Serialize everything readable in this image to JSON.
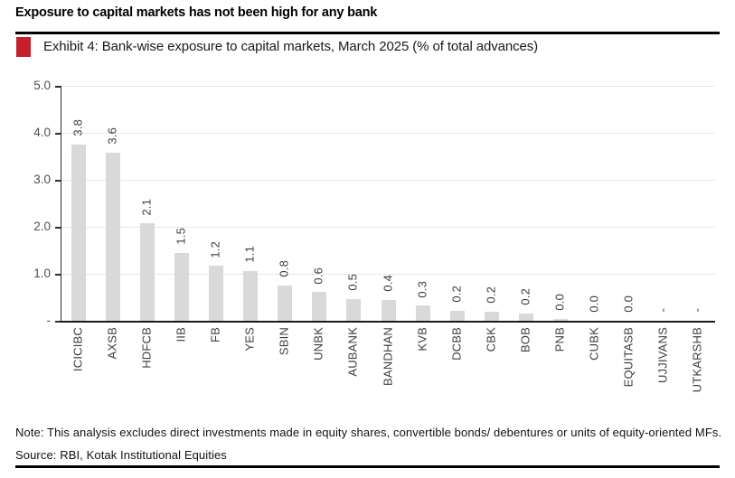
{
  "page": {
    "title": "Exposure to capital markets has not been high for any bank",
    "exhibit_caption": "Exhibit 4: Bank-wise exposure to capital markets, March 2025 (% of total advances)",
    "note": "Note: This analysis excludes direct investments made in equity shares, convertible bonds/ debentures or units of equity-oriented MFs.",
    "source": "Source: RBI, Kotak Institutional Equities"
  },
  "colors": {
    "accent_red": "#C4202B",
    "bar_fill": "#D9D9D9",
    "gridline": "#E7E7E7",
    "axis_line": "#2E2E2E",
    "text_dark": "#111111",
    "tick_text": "#4D4D4D"
  },
  "chart_data": {
    "type": "bar",
    "title": "Bank-wise exposure to capital markets, March 2025 (% of total advances)",
    "categories": [
      "ICICIBC",
      "AXSB",
      "HDFCB",
      "IIB",
      "FB",
      "YES",
      "SBIN",
      "UNBK",
      "AUBANK",
      "BANDHAN",
      "KVB",
      "DCBB",
      "CBK",
      "BOB",
      "PNB",
      "CUBK",
      "EQUITASB",
      "UJJIVANS",
      "UTKARSHB"
    ],
    "values": [
      3.8,
      3.6,
      2.1,
      1.5,
      1.2,
      1.1,
      0.8,
      0.6,
      0.5,
      0.4,
      0.3,
      0.2,
      0.2,
      0.2,
      0.0,
      0.0,
      0.0,
      null,
      null
    ],
    "value_labels": [
      "3.8",
      "3.6",
      "2.1",
      "1.5",
      "1.2",
      "1.1",
      "0.8",
      "0.6",
      "0.5",
      "0.4",
      "0.3",
      "0.2",
      "0.2",
      "0.2",
      "0.0",
      "0.0",
      "0.0",
      "-",
      "-"
    ],
    "render_heights": [
      3.76,
      3.58,
      2.07,
      1.44,
      1.17,
      1.06,
      0.75,
      0.61,
      0.47,
      0.44,
      0.32,
      0.21,
      0.2,
      0.16,
      0.04,
      0,
      0,
      0,
      0
    ],
    "ylabel": "",
    "xlabel": "",
    "ylim": [
      0,
      5
    ],
    "yticks": [
      "5.0",
      "4.0",
      "3.0",
      "2.0",
      "1.0",
      "-"
    ],
    "grid": true,
    "legend": "none",
    "value_label_rotation": 90,
    "category_label_rotation": 90
  }
}
